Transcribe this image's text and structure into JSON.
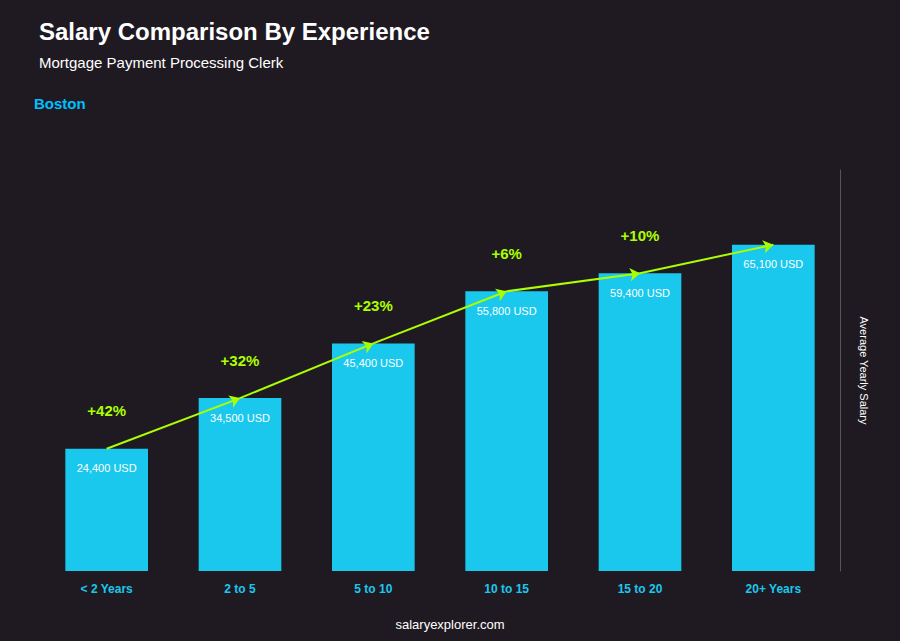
{
  "chart_data": {
    "type": "bar",
    "title": "Salary Comparison By Experience",
    "subtitle": "Mortgage Payment Processing Clerk",
    "ylabel": "Average Yearly Salary",
    "categories": [
      "< 2 Years",
      "2 to 5",
      "5 to 10",
      "10 to 15",
      "15 to 20",
      "20+ Years"
    ],
    "values": [
      24400,
      34500,
      45400,
      55800,
      59400,
      65100
    ],
    "value_labels": [
      "24,400 USD",
      "34,500 USD",
      "45,400 USD",
      "55,800 USD",
      "59,400 USD",
      "65,100 USD"
    ],
    "data_labels": true,
    "color": "#1ac8ed",
    "ylim": [
      0,
      80000
    ],
    "tick_labels": "x",
    "grid": false,
    "annotations": [
      {
        "text": "Boston",
        "color": "#00bfff"
      },
      {
        "text": "+42%",
        "from": "< 2 Years",
        "to": "2 to 5",
        "color": "#aaff00"
      },
      {
        "text": "+32%",
        "from": "2 to 5",
        "to": "5 to 10",
        "color": "#aaff00"
      },
      {
        "text": "+23%",
        "from": "5 to 10",
        "to": "10 to 15",
        "color": "#aaff00"
      },
      {
        "text": "+6%",
        "from": "10 to 15",
        "to": "15 to 20",
        "color": "#aaff00"
      },
      {
        "text": "+10%",
        "from": "15 to 20",
        "to": "20+ Years",
        "color": "#aaff00"
      },
      {
        "text": "salaryexplorer.com"
      }
    ]
  }
}
